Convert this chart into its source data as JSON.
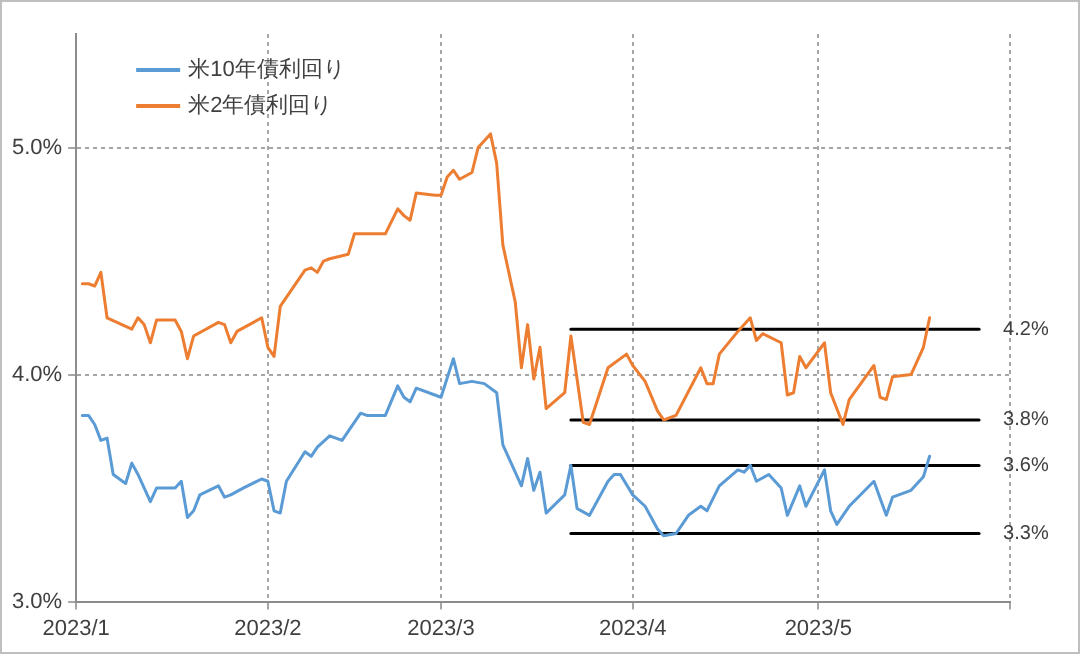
{
  "chart_data": {
    "type": "line",
    "xlim": [
      "2023-01-01",
      "2023-06-01"
    ],
    "xticks": [
      {
        "value": "2023-01-01",
        "label": "2023/1"
      },
      {
        "value": "2023-02-01",
        "label": "2023/2"
      },
      {
        "value": "2023-03-01",
        "label": "2023/3"
      },
      {
        "value": "2023-04-01",
        "label": "2023/4"
      },
      {
        "value": "2023-05-01",
        "label": "2023/5"
      },
      {
        "value": "2023-06-01",
        "label": null
      }
    ],
    "ylim": [
      3,
      5.5
    ],
    "yticks": [
      {
        "value": 3,
        "label": "3.0%"
      },
      {
        "value": 4,
        "label": "4.0%"
      },
      {
        "value": 5,
        "label": "5.0%"
      }
    ],
    "grid": true,
    "legend": "top left",
    "marker": "none",
    "line_style": "solid",
    "series": [
      {
        "name": "米10年債利回り",
        "color": "#5b9bd5",
        "x": [
          "2023-01-02",
          "2023-01-03",
          "2023-01-04",
          "2023-01-05",
          "2023-01-06",
          "2023-01-07",
          "2023-01-09",
          "2023-01-10",
          "2023-01-11",
          "2023-01-13",
          "2023-01-14",
          "2023-01-17",
          "2023-01-18",
          "2023-01-19",
          "2023-01-20",
          "2023-01-21",
          "2023-01-24",
          "2023-01-25",
          "2023-01-26",
          "2023-01-28",
          "2023-01-31",
          "2023-02-01",
          "2023-02-02",
          "2023-02-03",
          "2023-02-04",
          "2023-02-07",
          "2023-02-08",
          "2023-02-09",
          "2023-02-11",
          "2023-02-13",
          "2023-02-16",
          "2023-02-17",
          "2023-02-20",
          "2023-02-22",
          "2023-02-23",
          "2023-02-24",
          "2023-02-25",
          "2023-02-28",
          "2023-03-01",
          "2023-03-03",
          "2023-03-04",
          "2023-03-06",
          "2023-03-08",
          "2023-03-10",
          "2023-03-11",
          "2023-03-14",
          "2023-03-15",
          "2023-03-16",
          "2023-03-17",
          "2023-03-18",
          "2023-03-21",
          "2023-03-22",
          "2023-03-23",
          "2023-03-25",
          "2023-03-28",
          "2023-03-29",
          "2023-03-30",
          "2023-04-01",
          "2023-04-03",
          "2023-04-05",
          "2023-04-06",
          "2023-04-08",
          "2023-04-10",
          "2023-04-12",
          "2023-04-13",
          "2023-04-15",
          "2023-04-18",
          "2023-04-19",
          "2023-04-20",
          "2023-04-21",
          "2023-04-23",
          "2023-04-25",
          "2023-04-26",
          "2023-04-28",
          "2023-04-29",
          "2023-05-02",
          "2023-05-03",
          "2023-05-04",
          "2023-05-06",
          "2023-05-10",
          "2023-05-12",
          "2023-05-13",
          "2023-05-16",
          "2023-05-18",
          "2023-05-19"
        ],
        "values": [
          3.82,
          3.82,
          3.78,
          3.71,
          3.72,
          3.56,
          3.52,
          3.61,
          3.56,
          3.44,
          3.5,
          3.5,
          3.53,
          3.37,
          3.4,
          3.47,
          3.51,
          3.46,
          3.47,
          3.5,
          3.54,
          3.53,
          3.4,
          3.39,
          3.53,
          3.66,
          3.64,
          3.68,
          3.73,
          3.71,
          3.83,
          3.82,
          3.82,
          3.95,
          3.9,
          3.88,
          3.94,
          3.91,
          3.9,
          4.07,
          3.96,
          3.97,
          3.96,
          3.92,
          3.69,
          3.51,
          3.63,
          3.49,
          3.57,
          3.39,
          3.47,
          3.6,
          3.41,
          3.38,
          3.53,
          3.56,
          3.56,
          3.47,
          3.42,
          3.32,
          3.29,
          3.3,
          3.38,
          3.42,
          3.4,
          3.51,
          3.58,
          3.57,
          3.6,
          3.53,
          3.56,
          3.5,
          3.38,
          3.51,
          3.42,
          3.58,
          3.4,
          3.34,
          3.42,
          3.53,
          3.38,
          3.46,
          3.49,
          3.55,
          3.64
        ]
      },
      {
        "name": "米2年債利回り",
        "color": "#ed7d31",
        "x": [
          "2023-01-02",
          "2023-01-03",
          "2023-01-04",
          "2023-01-05",
          "2023-01-06",
          "2023-01-10",
          "2023-01-11",
          "2023-01-12",
          "2023-01-13",
          "2023-01-14",
          "2023-01-17",
          "2023-01-18",
          "2023-01-19",
          "2023-01-20",
          "2023-01-24",
          "2023-01-25",
          "2023-01-26",
          "2023-01-27",
          "2023-01-31",
          "2023-02-01",
          "2023-02-02",
          "2023-02-03",
          "2023-02-07",
          "2023-02-08",
          "2023-02-09",
          "2023-02-10",
          "2023-02-11",
          "2023-02-14",
          "2023-02-15",
          "2023-02-16",
          "2023-02-20",
          "2023-02-22",
          "2023-02-23",
          "2023-02-24",
          "2023-02-25",
          "2023-02-28",
          "2023-03-01",
          "2023-03-02",
          "2023-03-03",
          "2023-03-04",
          "2023-03-06",
          "2023-03-07",
          "2023-03-09",
          "2023-03-10",
          "2023-03-11",
          "2023-03-13",
          "2023-03-14",
          "2023-03-15",
          "2023-03-16",
          "2023-03-17",
          "2023-03-18",
          "2023-03-21",
          "2023-03-22",
          "2023-03-24",
          "2023-03-25",
          "2023-03-28",
          "2023-03-31",
          "2023-04-01",
          "2023-04-03",
          "2023-04-05",
          "2023-04-06",
          "2023-04-08",
          "2023-04-12",
          "2023-04-13",
          "2023-04-14",
          "2023-04-15",
          "2023-04-18",
          "2023-04-20",
          "2023-04-21",
          "2023-04-22",
          "2023-04-25",
          "2023-04-26",
          "2023-04-27",
          "2023-04-28",
          "2023-04-29",
          "2023-05-02",
          "2023-05-03",
          "2023-05-05",
          "2023-05-06",
          "2023-05-10",
          "2023-05-11",
          "2023-05-12",
          "2023-05-13",
          "2023-05-16",
          "2023-05-18",
          "2023-05-19"
        ],
        "values": [
          4.4,
          4.4,
          4.39,
          4.45,
          4.25,
          4.2,
          4.25,
          4.22,
          4.14,
          4.24,
          4.24,
          4.19,
          4.07,
          4.17,
          4.23,
          4.22,
          4.14,
          4.19,
          4.25,
          4.12,
          4.08,
          4.3,
          4.46,
          4.47,
          4.45,
          4.5,
          4.51,
          4.53,
          4.62,
          4.62,
          4.62,
          4.73,
          4.7,
          4.68,
          4.8,
          4.79,
          4.79,
          4.87,
          4.9,
          4.86,
          4.89,
          5.0,
          5.06,
          4.93,
          4.57,
          4.32,
          4.03,
          4.22,
          3.98,
          4.12,
          3.85,
          3.92,
          4.17,
          3.79,
          3.78,
          4.03,
          4.09,
          4.04,
          3.97,
          3.84,
          3.8,
          3.82,
          4.03,
          3.96,
          3.96,
          4.09,
          4.19,
          4.25,
          4.15,
          4.18,
          4.14,
          3.91,
          3.92,
          4.08,
          4.03,
          4.14,
          3.92,
          3.78,
          3.89,
          4.04,
          3.9,
          3.89,
          3.99,
          4.0,
          4.12,
          4.25
        ]
      },
      {
        "color": "#000000",
        "x": [
          "2023-03-22",
          "2023-05-27"
        ],
        "values": [
          4.2,
          4.2
        ]
      },
      {
        "color": "#000000",
        "x": [
          "2023-03-22",
          "2023-05-27"
        ],
        "values": [
          3.8,
          3.8
        ]
      },
      {
        "color": "#000000",
        "x": [
          "2023-03-22",
          "2023-05-27"
        ],
        "values": [
          3.6,
          3.6
        ]
      },
      {
        "color": "#000000",
        "x": [
          "2023-03-22",
          "2023-05-27"
        ],
        "values": [
          3.3,
          3.3
        ]
      }
    ],
    "annotations": [
      {
        "text": "4.2%",
        "x": "2023-05-27",
        "y": 4.2
      },
      {
        "text": "3.8%",
        "x": "2023-05-27",
        "y": 3.8
      },
      {
        "text": "3.6%",
        "x": "2023-05-27",
        "y": 3.6
      },
      {
        "text": "3.3%",
        "x": "2023-05-27",
        "y": 3.3
      }
    ]
  }
}
